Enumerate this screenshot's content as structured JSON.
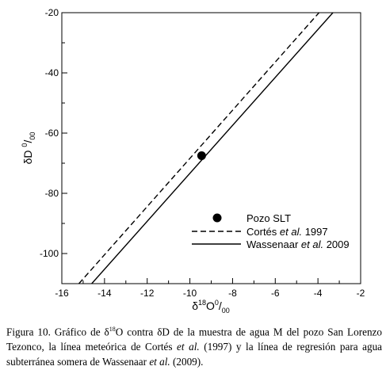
{
  "chart_data": {
    "type": "scatter",
    "xlim": [
      -16,
      -2
    ],
    "ylim": [
      -110,
      -20
    ],
    "x_ticks": [
      -16,
      -14,
      -12,
      -10,
      -8,
      -6,
      -4,
      -2
    ],
    "y_ticks": [
      -20,
      -40,
      -60,
      -80,
      -100
    ],
    "xlabel": {
      "pre": "δ",
      "sup": "18",
      "main": "O",
      "sup2": "0",
      "post": "/",
      "sub": "00"
    },
    "ylabel": {
      "pre": "δD ",
      "sup": "0",
      "post": "/",
      "sub": "00"
    },
    "series": [
      {
        "name": "Pozo SLT",
        "style": "marker",
        "points": [
          [
            -9.45,
            -67.5
          ]
        ]
      },
      {
        "name_pre": "Cortés ",
        "name_em": "et al.",
        "name_post": " 1997",
        "style": "dashed",
        "line": [
          [
            -15.2,
            -110
          ],
          [
            -3.95,
            -20
          ]
        ]
      },
      {
        "name_pre": "Wassenaar ",
        "name_em": "et al.",
        "name_post": " 2009",
        "style": "solid",
        "line": [
          [
            -14.6,
            -110
          ],
          [
            -3.3,
            -20
          ]
        ]
      }
    ],
    "legend_position": "bottom-right"
  },
  "caption": {
    "p1": "Figura 10. Gráfico de δ",
    "sup1": "18",
    "p2": "O contra δD de la muestra de agua M del pozo San Lorenzo Tezonco, la línea meteórica de Cortés ",
    "em1": "et al.",
    "p3": " (1997) y la línea de regresión para agua subterránea somera de Wassenaar ",
    "em2": "et al.",
    "p4": " (2009)."
  }
}
